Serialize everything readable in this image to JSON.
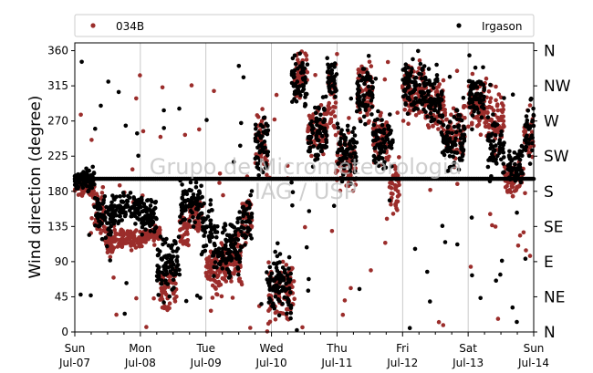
{
  "chart_data": {
    "type": "scatter",
    "ylabel": "Wind direction (degree)",
    "ylim": [
      0,
      370
    ],
    "yticks": [
      0,
      45,
      90,
      135,
      180,
      225,
      270,
      315,
      360
    ],
    "xlim_days": [
      0,
      7
    ],
    "xticks": [
      {
        "day": "Sun",
        "date": "Jul-07"
      },
      {
        "day": "Mon",
        "date": "Jul-08"
      },
      {
        "day": "Tue",
        "date": "Jul-09"
      },
      {
        "day": "Wed",
        "date": "Jul-10"
      },
      {
        "day": "Thu",
        "date": "Jul-11"
      },
      {
        "day": "Fri",
        "date": "Jul-12"
      },
      {
        "day": "Sat",
        "date": "Jul-13"
      },
      {
        "day": "Sun",
        "date": "Jul-14"
      }
    ],
    "compass": [
      {
        "label": "N",
        "deg": 0
      },
      {
        "label": "NE",
        "deg": 45
      },
      {
        "label": "E",
        "deg": 90
      },
      {
        "label": "SE",
        "deg": 135
      },
      {
        "label": "S",
        "deg": 180
      },
      {
        "label": "SW",
        "deg": 225
      },
      {
        "label": "W",
        "deg": 270
      },
      {
        "label": "NW",
        "deg": 315
      },
      {
        "label": "N",
        "deg": 360
      }
    ],
    "grid": "vertical",
    "legend": "top",
    "watermark": [
      "Grupo de Micrometeorologia",
      "IAG / USP"
    ],
    "series": [
      {
        "name": "034B",
        "color": "#9b2d2b",
        "segments": [
          [
            0.0,
            0.3,
            185,
            10
          ],
          [
            0.3,
            0.45,
            150,
            30
          ],
          [
            0.45,
            0.6,
            115,
            20
          ],
          [
            0.6,
            1.05,
            120,
            10
          ],
          [
            1.05,
            1.3,
            125,
            10
          ],
          [
            1.3,
            1.45,
            55,
            25
          ],
          [
            1.45,
            1.55,
            65,
            25
          ],
          [
            1.6,
            1.75,
            130,
            20
          ],
          [
            1.75,
            1.95,
            150,
            20
          ],
          [
            2.0,
            2.25,
            80,
            25
          ],
          [
            2.25,
            2.55,
            90,
            30
          ],
          [
            2.55,
            2.7,
            145,
            30
          ],
          [
            2.75,
            2.95,
            240,
            35
          ],
          [
            2.95,
            3.35,
            50,
            30
          ],
          [
            3.35,
            3.55,
            330,
            25
          ],
          [
            3.55,
            3.85,
            260,
            30
          ],
          [
            3.85,
            3.98,
            300,
            30
          ],
          [
            3.98,
            4.3,
            215,
            30
          ],
          [
            4.3,
            4.55,
            310,
            30
          ],
          [
            4.55,
            4.8,
            250,
            30
          ],
          [
            4.8,
            4.95,
            180,
            30
          ],
          [
            5.0,
            5.35,
            310,
            30
          ],
          [
            5.35,
            5.65,
            290,
            25
          ],
          [
            5.65,
            5.95,
            250,
            30
          ],
          [
            6.0,
            6.3,
            290,
            30
          ],
          [
            6.3,
            6.55,
            270,
            30
          ],
          [
            6.55,
            6.85,
            195,
            15
          ],
          [
            6.85,
            7.0,
            250,
            35
          ]
        ]
      },
      {
        "name": "Irgason",
        "color": "#000000",
        "constant_value": 196,
        "segments": [
          [
            0.0,
            0.3,
            195,
            12
          ],
          [
            0.3,
            0.6,
            150,
            25
          ],
          [
            0.6,
            1.0,
            160,
            15
          ],
          [
            1.0,
            1.25,
            150,
            20
          ],
          [
            1.25,
            1.45,
            80,
            30
          ],
          [
            1.45,
            1.6,
            90,
            30
          ],
          [
            1.6,
            1.95,
            165,
            20
          ],
          [
            1.95,
            2.1,
            140,
            30
          ],
          [
            2.1,
            2.55,
            110,
            30
          ],
          [
            2.55,
            2.7,
            150,
            30
          ],
          [
            2.75,
            2.95,
            240,
            30
          ],
          [
            2.95,
            3.3,
            60,
            35
          ],
          [
            3.3,
            3.55,
            320,
            30
          ],
          [
            3.55,
            3.85,
            245,
            30
          ],
          [
            3.85,
            4.0,
            320,
            25
          ],
          [
            4.0,
            4.3,
            230,
            30
          ],
          [
            4.3,
            4.55,
            305,
            30
          ],
          [
            4.55,
            4.85,
            245,
            30
          ],
          [
            5.0,
            5.35,
            315,
            30
          ],
          [
            5.35,
            5.6,
            300,
            30
          ],
          [
            5.6,
            5.95,
            245,
            35
          ],
          [
            6.0,
            6.25,
            300,
            30
          ],
          [
            6.3,
            6.55,
            240,
            30
          ],
          [
            6.6,
            6.85,
            210,
            20
          ],
          [
            6.85,
            7.0,
            255,
            35
          ]
        ]
      }
    ]
  }
}
